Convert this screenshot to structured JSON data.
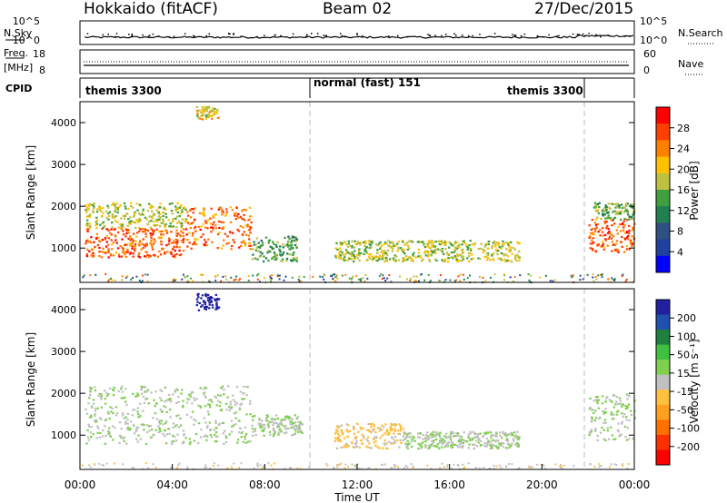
{
  "header": {
    "title": "Hokkaido (fitACF)",
    "beam": "Beam 02",
    "date": "27/Dec/2015"
  },
  "top_panels": {
    "nsky_label": "N.Sky",
    "nsky_ticks": [
      "10^5",
      "10^0"
    ],
    "nsearch_label": "N.Search",
    "nsearch_ticks": [
      "10^5",
      "10^0"
    ],
    "freq_label": "Freq.",
    "freq_unit": "[MHz]",
    "freq_ticks": [
      "18",
      "8"
    ],
    "nave_label": "Nave",
    "nave_ticks": [
      "60",
      "0"
    ],
    "cpid_label": "CPID",
    "cpid_segments": [
      "themis 3300",
      "normal (fast) 151",
      "themis 3300"
    ]
  },
  "colorbars": {
    "power": {
      "label": "Power [dB]",
      "ticks": [
        "28",
        "24",
        "20",
        "16",
        "12",
        "8",
        "4"
      ],
      "colors": [
        "#ff0000",
        "#ff4000",
        "#ff8000",
        "#ffc000",
        "#c0c040",
        "#40a040",
        "#208050",
        "#305080",
        "#2040a0",
        "#0000ff"
      ]
    },
    "velocity": {
      "label": "Velocity [m s⁻¹]",
      "ticks": [
        "200",
        "100",
        "50",
        "15",
        "-15",
        "-50",
        "-100",
        "-200"
      ],
      "colors": [
        "#2020a0",
        "#2050b0",
        "#208040",
        "#40c040",
        "#80d050",
        "#c0c0c0",
        "#ffc040",
        "#ffa020",
        "#ff7000",
        "#ff3000",
        "#ff0000"
      ]
    }
  },
  "axes": {
    "ylabel": "Slant Range [km]",
    "yticks": [
      "1000",
      "2000",
      "3000",
      "4000"
    ],
    "xlabel": "Time UT",
    "xticks": [
      "00:00",
      "04:00",
      "08:00",
      "12:00",
      "16:00",
      "20:00",
      "00:00"
    ]
  },
  "chart_data": {
    "type": "heatmap",
    "x_range_hours": [
      0,
      24
    ],
    "y_range_km": [
      180,
      4500
    ],
    "mode_changes_hours": [
      10,
      22
    ],
    "power_blobs": [
      {
        "t0": 0.2,
        "t1": 4.6,
        "r0": 800,
        "r1": 1500,
        "level": 26
      },
      {
        "t0": 0.2,
        "t1": 4.6,
        "r0": 1500,
        "r1": 2100,
        "level": 18
      },
      {
        "t0": 4.6,
        "t1": 7.4,
        "r0": 1000,
        "r1": 2000,
        "level": 25
      },
      {
        "t0": 7.4,
        "t1": 9.4,
        "r0": 700,
        "r1": 1300,
        "level": 14
      },
      {
        "t0": 11.0,
        "t1": 19.0,
        "r0": 700,
        "r1": 1200,
        "level": 18
      },
      {
        "t0": 22.0,
        "t1": 24.0,
        "r0": 900,
        "r1": 1700,
        "level": 26
      },
      {
        "t0": 22.2,
        "t1": 24.0,
        "r0": 1700,
        "r1": 2100,
        "level": 16
      },
      {
        "t0": 5.0,
        "t1": 6.0,
        "r0": 4100,
        "r1": 4400,
        "level": 20
      }
    ],
    "velocity_blobs": [
      {
        "t0": 0.2,
        "t1": 7.4,
        "r0": 800,
        "r1": 2200,
        "velocity": 0
      },
      {
        "t0": 7.4,
        "t1": 9.6,
        "r0": 1000,
        "r1": 1500,
        "velocity": 0
      },
      {
        "t0": 11.0,
        "t1": 14.0,
        "r0": 700,
        "r1": 1300,
        "velocity": -40
      },
      {
        "t0": 14.0,
        "t1": 19.0,
        "r0": 700,
        "r1": 1100,
        "velocity": 0
      },
      {
        "t0": 22.0,
        "t1": 24.0,
        "r0": 900,
        "r1": 2000,
        "velocity": 0
      },
      {
        "t0": 5.0,
        "t1": 6.0,
        "r0": 4000,
        "r1": 4400,
        "velocity": 200
      }
    ]
  }
}
